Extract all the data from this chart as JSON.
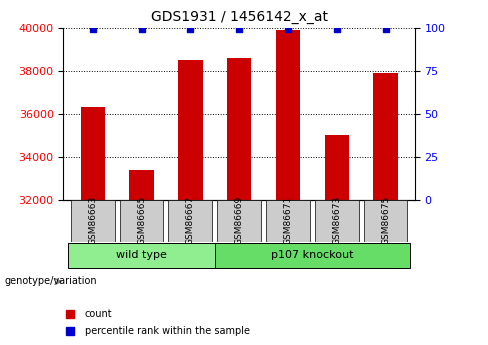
{
  "title": "GDS1931 / 1456142_x_at",
  "samples": [
    "GSM86663",
    "GSM86665",
    "GSM86667",
    "GSM86669",
    "GSM86671",
    "GSM86673",
    "GSM86675"
  ],
  "counts": [
    36300,
    33400,
    38500,
    38600,
    39900,
    35000,
    37900
  ],
  "percentiles": [
    99,
    99,
    99,
    99,
    99,
    99,
    99
  ],
  "bar_color": "#cc0000",
  "percentile_color": "#0000cc",
  "ylim_left": [
    32000,
    40000
  ],
  "ylim_right": [
    0,
    100
  ],
  "yticks_left": [
    32000,
    34000,
    36000,
    38000,
    40000
  ],
  "yticks_right": [
    0,
    25,
    50,
    75,
    100
  ],
  "grid_color": "#000000",
  "groups": [
    {
      "label": "wild type",
      "indices": [
        0,
        1,
        2
      ],
      "color": "#90ee90"
    },
    {
      "label": "p107 knockout",
      "indices": [
        3,
        4,
        5,
        6
      ],
      "color": "#66dd66"
    }
  ],
  "group_label": "genotype/variation",
  "legend_count_label": "count",
  "legend_percentile_label": "percentile rank within the sample",
  "background_color": "#ffffff",
  "tick_box_color": "#cccccc"
}
